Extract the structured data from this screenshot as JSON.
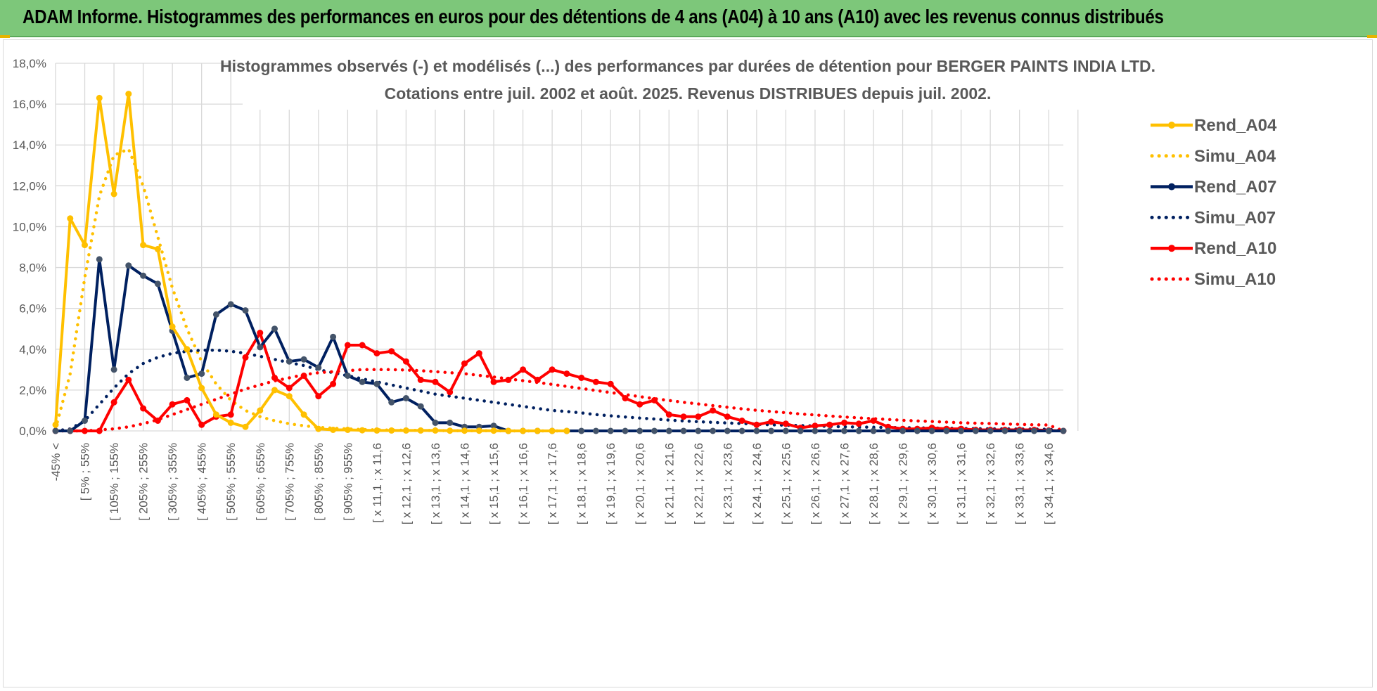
{
  "banner": {
    "title": "ADAM Informe. Histogrammes des performances en euros pour des détentions de 4 ans (A04) à 10 ans (A10) avec les revenus connus distribués"
  },
  "colors": {
    "banner_bg": "#7dc77a",
    "a04": "#ffc000",
    "a07": "#002060",
    "a10": "#ff0000",
    "a07_marker": "#44546a",
    "grid": "#d9d9d9",
    "text": "#595959"
  },
  "chart_data": {
    "type": "line",
    "title_line1": "Histogrammes observés (-) et modélisés (...) des performances par durées de détention pour BERGER PAINTS INDIA LTD.",
    "title_line2": "Cotations entre juil. 2002 et août. 2025. Revenus DISTRIBUES depuis juil. 2002.",
    "ylim": [
      0,
      18
    ],
    "yticks": [
      "0,0%",
      "2,0%",
      "4,0%",
      "6,0%",
      "8,0%",
      "10,0%",
      "12,0%",
      "14,0%",
      "16,0%",
      "18,0%"
    ],
    "grid": true,
    "legend_position": "right",
    "x_labels": [
      "-45% <",
      "[ 5% ; 55%",
      "[ 105% ; 155%",
      "[ 205% ; 255%",
      "[ 305% ; 355%",
      "[ 405% ; 455%",
      "[ 505% ; 555%",
      "[ 605% ; 655%",
      "[ 705% ; 755%",
      "[ 805% ; 855%",
      "[ 905% ; 955%",
      "[ x 11,1 ; x 11,6",
      "[ x 12,1 ; x 12,6",
      "[ x 13,1 ; x 13,6",
      "[ x 14,1 ; x 14,6",
      "[ x 15,1 ; x 15,6",
      "[ x 16,1 ; x 16,6",
      "[ x 17,1 ; x 17,6",
      "[ x 18,1 ; x 18,6",
      "[ x 19,1 ; x 19,6",
      "[ x 20,1 ; x 20,6",
      "[ x 21,1 ; x 21,6",
      "[ x 22,1 ; x 22,6",
      "[ x 23,1 ; x 23,6",
      "[ x 24,1 ; x 24,6",
      "[ x 25,1 ; x 25,6",
      "[ x 26,1 ; x 26,6",
      "[ x 27,1 ; x 27,6",
      "[ x 28,1 ; x 28,6",
      "[ x 29,1 ; x 29,6",
      "[ x 30,1 ; x 30,6",
      "[ x 31,1 ; x 31,6",
      "[ x 32,1 ; x 32,6",
      "[ x 33,1 ; x 33,6",
      "[ x 34,1 ; x 34,6"
    ],
    "series": [
      {
        "name": "Rend_A04",
        "style": "solid",
        "color": "#ffc000",
        "values": [
          0.3,
          10.4,
          9.1,
          16.3,
          11.6,
          16.5,
          9.1,
          8.9,
          5.1,
          4.0,
          2.1,
          0.8,
          0.4,
          0.2,
          1.0,
          2.0,
          1.7,
          0.8,
          0.1,
          0.05,
          0.05,
          0.03,
          0.02,
          0.02,
          0.02,
          0.02,
          0.02,
          0.01,
          0.01,
          0.01,
          0.01,
          0.0,
          0.0,
          0.0,
          0.0,
          0.0
        ]
      },
      {
        "name": "Simu_A04",
        "style": "dotted",
        "color": "#ffc000",
        "values": [
          0.1,
          2.8,
          7.5,
          11.5,
          13.5,
          13.8,
          12.0,
          9.5,
          7.0,
          5.0,
          3.4,
          2.3,
          1.5,
          1.0,
          0.7,
          0.5,
          0.35,
          0.25,
          0.18,
          0.13,
          0.1,
          0.07,
          0.05,
          0.04,
          0.03,
          0.02,
          0.02,
          0.01,
          0.01,
          0.01,
          0.01,
          0.0,
          0.0,
          0.0,
          0.0,
          0.0
        ]
      },
      {
        "name": "Rend_A07",
        "style": "solid",
        "color": "#002060",
        "values": [
          0.0,
          0.0,
          0.5,
          8.4,
          3.0,
          8.1,
          7.6,
          7.2,
          4.9,
          2.6,
          2.8,
          5.7,
          6.2,
          5.9,
          4.1,
          5.0,
          3.4,
          3.5,
          3.1,
          4.6,
          2.7,
          2.4,
          2.3,
          1.4,
          1.6,
          1.2,
          0.4,
          0.4,
          0.2,
          0.2,
          0.25,
          0.0,
          0.0,
          0.0,
          0.0,
          0.0,
          0.0,
          0.0,
          0.0,
          0.0,
          0.0,
          0.0,
          0.0,
          0.0,
          0.0,
          0.0,
          0.0,
          0.0,
          0.0,
          0.0,
          0.0,
          0.0,
          0.0,
          0.0,
          0.0,
          0.0,
          0.0,
          0.0,
          0.0,
          0.0,
          0.0,
          0.0,
          0.0,
          0.0,
          0.0,
          0.0,
          0.0,
          0.0,
          0.0,
          0.0
        ]
      },
      {
        "name": "Simu_A07",
        "style": "dotted",
        "color": "#002060",
        "values": [
          0.0,
          0.1,
          0.5,
          1.3,
          2.1,
          2.8,
          3.3,
          3.6,
          3.8,
          3.9,
          3.95,
          3.95,
          3.9,
          3.8,
          3.65,
          3.5,
          3.35,
          3.2,
          3.0,
          2.85,
          2.7,
          2.55,
          2.4,
          2.25,
          2.1,
          1.95,
          1.8,
          1.7,
          1.6,
          1.5,
          1.4,
          1.3,
          1.2,
          1.1,
          1.0,
          0.95,
          0.88,
          0.8,
          0.74,
          0.68,
          0.63,
          0.58,
          0.53,
          0.49,
          0.45,
          0.42,
          0.39,
          0.36,
          0.33,
          0.3,
          0.28,
          0.26,
          0.24,
          0.22,
          0.2,
          0.19,
          0.18,
          0.17,
          0.16,
          0.15,
          0.14,
          0.13,
          0.12,
          0.11,
          0.1,
          0.1,
          0.09,
          0.09,
          0.08,
          0.0
        ]
      },
      {
        "name": "Rend_A10",
        "style": "solid",
        "color": "#ff0000",
        "values": [
          0.0,
          0.0,
          0.0,
          0.0,
          1.4,
          2.5,
          1.1,
          0.5,
          1.3,
          1.5,
          0.3,
          0.7,
          0.8,
          3.6,
          4.8,
          2.6,
          2.1,
          2.7,
          1.7,
          2.3,
          4.2,
          4.2,
          3.8,
          3.9,
          3.4,
          2.5,
          2.4,
          1.9,
          3.3,
          3.8,
          2.4,
          2.5,
          3.0,
          2.5,
          3.0,
          2.8,
          2.6,
          2.4,
          2.3,
          1.6,
          1.3,
          1.5,
          0.8,
          0.7,
          0.7,
          1.0,
          0.7,
          0.5,
          0.3,
          0.45,
          0.35,
          0.15,
          0.25,
          0.3,
          0.4,
          0.35,
          0.5,
          0.2,
          0.1,
          0.1,
          0.15,
          0.1,
          0.1,
          0.05,
          0.05,
          0.05,
          0.05,
          0.05,
          0.02,
          0.0
        ]
      },
      {
        "name": "Simu_A10",
        "style": "dotted",
        "color": "#ff0000",
        "values": [
          0.0,
          0.0,
          0.0,
          0.05,
          0.1,
          0.2,
          0.35,
          0.55,
          0.8,
          1.05,
          1.3,
          1.55,
          1.8,
          2.05,
          2.25,
          2.45,
          2.6,
          2.75,
          2.85,
          2.9,
          2.95,
          3.0,
          3.0,
          3.0,
          2.98,
          2.95,
          2.9,
          2.85,
          2.8,
          2.72,
          2.64,
          2.55,
          2.46,
          2.37,
          2.28,
          2.18,
          2.08,
          1.98,
          1.88,
          1.78,
          1.68,
          1.58,
          1.49,
          1.4,
          1.32,
          1.24,
          1.16,
          1.08,
          1.01,
          0.95,
          0.89,
          0.83,
          0.78,
          0.73,
          0.68,
          0.64,
          0.6,
          0.56,
          0.52,
          0.49,
          0.46,
          0.43,
          0.4,
          0.38,
          0.36,
          0.34,
          0.32,
          0.3,
          0.29,
          0.0
        ]
      }
    ]
  }
}
